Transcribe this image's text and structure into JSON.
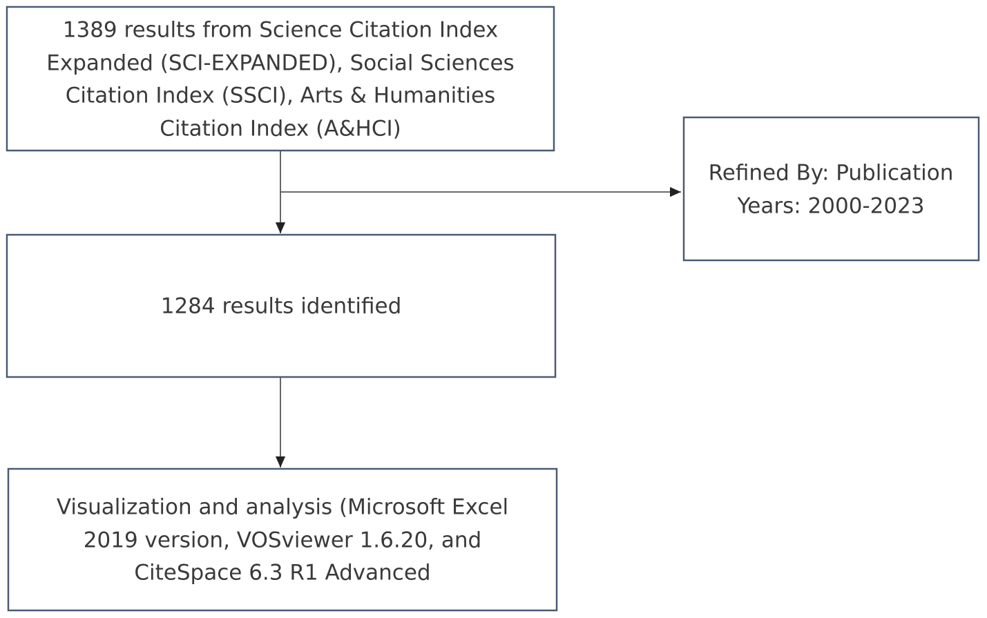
{
  "nodes": [
    {
      "lines": [
        "1389 results from Science Citation Index",
        "Expanded (SCI-EXPANDED), Social Sciences",
        "Citation Index (SSCI), Arts & Humanities",
        "Citation Index (A&HCI)"
      ]
    },
    {
      "lines": [
        "Refined By: Publication",
        "Years: 2000-2023"
      ]
    },
    {
      "lines": [
        "1284 results identified"
      ]
    },
    {
      "lines": [
        "Visualization and analysis (Microsoft Excel",
        "2019 version, VOSviewer 1.6.20, and",
        "CiteSpace 6.3 R1 Advanced"
      ]
    }
  ]
}
